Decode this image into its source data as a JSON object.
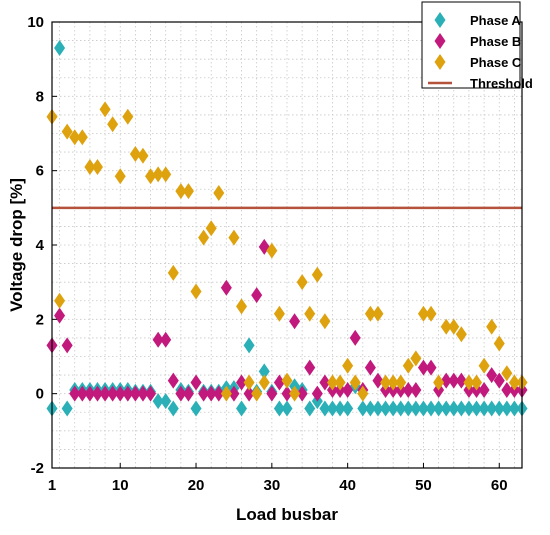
{
  "chart_data": {
    "type": "scatter",
    "xlabel": "Load busbar",
    "ylabel": "Voltage drop [%]",
    "xlim": [
      1,
      63
    ],
    "ylim": [
      -2,
      10
    ],
    "xticks": [
      1,
      10,
      20,
      30,
      40,
      50,
      60
    ],
    "yticks": [
      -2,
      0,
      2,
      4,
      6,
      8,
      10
    ],
    "grid": true,
    "legend_position": "top-right",
    "threshold": {
      "name": "Threshold",
      "value": 5,
      "color": "#b5523b"
    },
    "series": [
      {
        "name": "Phase A",
        "color": "#2ab0b6",
        "points": [
          [
            1,
            -0.4
          ],
          [
            2,
            9.3
          ],
          [
            3,
            -0.4
          ],
          [
            4,
            0.1
          ],
          [
            5,
            0.1
          ],
          [
            6,
            0.1
          ],
          [
            7,
            0.1
          ],
          [
            8,
            0.1
          ],
          [
            9,
            0.1
          ],
          [
            10,
            0.1
          ],
          [
            11,
            0.1
          ],
          [
            12,
            0.05
          ],
          [
            13,
            0.05
          ],
          [
            14,
            0.05
          ],
          [
            15,
            -0.2
          ],
          [
            16,
            -0.2
          ],
          [
            17,
            -0.4
          ],
          [
            18,
            0.1
          ],
          [
            19,
            0.05
          ],
          [
            20,
            -0.4
          ],
          [
            21,
            0.05
          ],
          [
            22,
            0.05
          ],
          [
            23,
            0.05
          ],
          [
            24,
            0.15
          ],
          [
            25,
            0.15
          ],
          [
            26,
            -0.4
          ],
          [
            27,
            1.3
          ],
          [
            28,
            0.05
          ],
          [
            29,
            0.6
          ],
          [
            30,
            0.05
          ],
          [
            31,
            -0.4
          ],
          [
            32,
            -0.4
          ],
          [
            33,
            0.2
          ],
          [
            34,
            0.1
          ],
          [
            35,
            -0.4
          ],
          [
            36,
            -0.2
          ],
          [
            37,
            -0.4
          ],
          [
            38,
            -0.4
          ],
          [
            39,
            -0.4
          ],
          [
            40,
            -0.4
          ],
          [
            41,
            0.2
          ],
          [
            42,
            -0.4
          ],
          [
            43,
            -0.4
          ],
          [
            44,
            -0.4
          ],
          [
            45,
            -0.4
          ],
          [
            46,
            -0.4
          ],
          [
            47,
            -0.4
          ],
          [
            48,
            -0.4
          ],
          [
            49,
            -0.4
          ],
          [
            50,
            -0.4
          ],
          [
            51,
            -0.4
          ],
          [
            52,
            -0.4
          ],
          [
            53,
            -0.4
          ],
          [
            54,
            -0.4
          ],
          [
            55,
            -0.4
          ],
          [
            56,
            -0.4
          ],
          [
            57,
            -0.4
          ],
          [
            58,
            -0.4
          ],
          [
            59,
            -0.4
          ],
          [
            60,
            -0.4
          ],
          [
            61,
            -0.4
          ],
          [
            62,
            -0.4
          ],
          [
            63,
            -0.4
          ]
        ]
      },
      {
        "name": "Phase B",
        "color": "#c2197c",
        "points": [
          [
            1,
            1.3
          ],
          [
            2,
            2.1
          ],
          [
            3,
            1.3
          ],
          [
            4,
            0.0
          ],
          [
            5,
            0.0
          ],
          [
            6,
            0.0
          ],
          [
            7,
            0.0
          ],
          [
            8,
            0.0
          ],
          [
            9,
            0.0
          ],
          [
            10,
            0.0
          ],
          [
            11,
            0.0
          ],
          [
            12,
            0.0
          ],
          [
            13,
            0.0
          ],
          [
            14,
            0.0
          ],
          [
            15,
            1.45
          ],
          [
            16,
            1.45
          ],
          [
            17,
            0.35
          ],
          [
            18,
            0.0
          ],
          [
            19,
            0.0
          ],
          [
            20,
            0.3
          ],
          [
            21,
            0.0
          ],
          [
            22,
            0.0
          ],
          [
            23,
            0.0
          ],
          [
            24,
            2.85
          ],
          [
            25,
            0.0
          ],
          [
            26,
            0.3
          ],
          [
            27,
            0.0
          ],
          [
            28,
            2.65
          ],
          [
            29,
            3.95
          ],
          [
            30,
            0.0
          ],
          [
            31,
            0.3
          ],
          [
            32,
            0.0
          ],
          [
            33,
            1.95
          ],
          [
            34,
            0.0
          ],
          [
            35,
            0.7
          ],
          [
            36,
            0.0
          ],
          [
            37,
            0.3
          ],
          [
            38,
            0.1
          ],
          [
            39,
            0.1
          ],
          [
            40,
            0.1
          ],
          [
            41,
            1.5
          ],
          [
            42,
            0.1
          ],
          [
            43,
            0.7
          ],
          [
            44,
            0.35
          ],
          [
            45,
            0.1
          ],
          [
            46,
            0.1
          ],
          [
            47,
            0.1
          ],
          [
            48,
            0.1
          ],
          [
            49,
            0.1
          ],
          [
            50,
            0.7
          ],
          [
            51,
            0.7
          ],
          [
            52,
            0.1
          ],
          [
            53,
            0.35
          ],
          [
            54,
            0.35
          ],
          [
            55,
            0.35
          ],
          [
            56,
            0.1
          ],
          [
            57,
            0.1
          ],
          [
            58,
            0.1
          ],
          [
            59,
            0.5
          ],
          [
            60,
            0.35
          ],
          [
            61,
            0.1
          ],
          [
            62,
            0.1
          ],
          [
            63,
            0.1
          ]
        ]
      },
      {
        "name": "Phase C",
        "color": "#dea20f",
        "points": [
          [
            1,
            7.45
          ],
          [
            2,
            2.5
          ],
          [
            3,
            7.05
          ],
          [
            4,
            6.9
          ],
          [
            5,
            6.9
          ],
          [
            6,
            6.1
          ],
          [
            7,
            6.1
          ],
          [
            8,
            7.65
          ],
          [
            9,
            7.25
          ],
          [
            10,
            5.85
          ],
          [
            11,
            7.45
          ],
          [
            12,
            6.45
          ],
          [
            13,
            6.4
          ],
          [
            14,
            5.85
          ],
          [
            15,
            5.9
          ],
          [
            16,
            5.9
          ],
          [
            17,
            3.25
          ],
          [
            18,
            5.45
          ],
          [
            19,
            5.45
          ],
          [
            20,
            2.75
          ],
          [
            21,
            4.2
          ],
          [
            22,
            4.45
          ],
          [
            23,
            5.4
          ],
          [
            24,
            0.0
          ],
          [
            25,
            4.2
          ],
          [
            26,
            2.35
          ],
          [
            27,
            0.3
          ],
          [
            28,
            0.0
          ],
          [
            29,
            0.3
          ],
          [
            30,
            3.85
          ],
          [
            31,
            2.15
          ],
          [
            32,
            0.35
          ],
          [
            33,
            0.0
          ],
          [
            34,
            3.0
          ],
          [
            35,
            2.15
          ],
          [
            36,
            3.2
          ],
          [
            37,
            1.95
          ],
          [
            38,
            0.3
          ],
          [
            39,
            0.3
          ],
          [
            40,
            0.75
          ],
          [
            41,
            0.3
          ],
          [
            42,
            0.0
          ],
          [
            43,
            2.15
          ],
          [
            44,
            2.15
          ],
          [
            45,
            0.3
          ],
          [
            46,
            0.3
          ],
          [
            47,
            0.3
          ],
          [
            48,
            0.75
          ],
          [
            49,
            0.95
          ],
          [
            50,
            2.15
          ],
          [
            51,
            2.15
          ],
          [
            52,
            0.3
          ],
          [
            53,
            1.8
          ],
          [
            54,
            1.8
          ],
          [
            55,
            1.6
          ],
          [
            56,
            0.3
          ],
          [
            57,
            0.3
          ],
          [
            58,
            0.75
          ],
          [
            59,
            1.8
          ],
          [
            60,
            1.35
          ],
          [
            61,
            0.55
          ],
          [
            62,
            0.3
          ],
          [
            63,
            0.3
          ]
        ]
      }
    ]
  }
}
